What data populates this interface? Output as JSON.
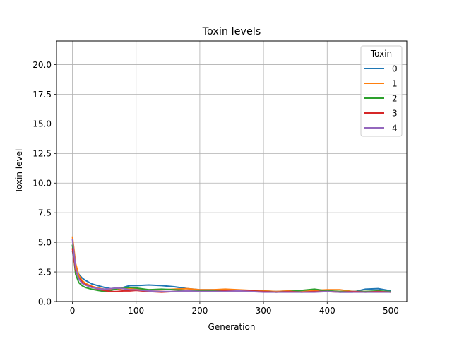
{
  "chart_data": {
    "type": "line",
    "title": "Toxin levels",
    "xlabel": "Generation",
    "ylabel": "Toxin level",
    "xlim": [
      -25,
      525
    ],
    "ylim": [
      0,
      22
    ],
    "xticks": [
      0,
      100,
      200,
      300,
      400,
      500
    ],
    "yticks": [
      0.0,
      2.5,
      5.0,
      7.5,
      10.0,
      12.5,
      15.0,
      17.5,
      20.0
    ],
    "ytick_labels": [
      "0.0",
      "2.5",
      "5.0",
      "7.5",
      "10.0",
      "12.5",
      "15.0",
      "17.5",
      "20.0"
    ],
    "grid": true,
    "legend": {
      "title": "Toxin",
      "placement": "top-right"
    },
    "x": [
      0,
      5,
      10,
      15,
      20,
      30,
      40,
      50,
      60,
      70,
      80,
      90,
      100,
      120,
      140,
      160,
      180,
      200,
      220,
      240,
      260,
      280,
      300,
      320,
      340,
      360,
      380,
      400,
      420,
      440,
      460,
      480,
      500
    ],
    "series": [
      {
        "name": "0",
        "color": "#1f77b4",
        "values": [
          4.3,
          2.9,
          2.3,
          2.0,
          1.8,
          1.5,
          1.35,
          1.2,
          1.1,
          1.15,
          1.2,
          1.35,
          1.35,
          1.4,
          1.35,
          1.25,
          1.1,
          1.0,
          1.0,
          0.95,
          0.95,
          0.9,
          0.9,
          0.85,
          0.9,
          0.9,
          0.95,
          0.95,
          0.8,
          0.8,
          1.05,
          1.1,
          0.9
        ]
      },
      {
        "name": "1",
        "color": "#ff7f0e",
        "values": [
          5.5,
          3.2,
          2.2,
          1.8,
          1.55,
          1.3,
          1.15,
          1.05,
          1.0,
          1.05,
          1.1,
          1.1,
          1.05,
          1.0,
          1.0,
          1.05,
          1.1,
          1.0,
          1.0,
          1.05,
          1.0,
          0.95,
          0.9,
          0.85,
          0.9,
          0.9,
          0.95,
          1.0,
          1.0,
          0.85,
          0.85,
          0.85,
          0.8
        ]
      },
      {
        "name": "2",
        "color": "#2ca02c",
        "values": [
          4.8,
          2.3,
          1.6,
          1.35,
          1.2,
          1.05,
          0.95,
          0.85,
          0.95,
          1.1,
          1.15,
          1.2,
          1.15,
          1.0,
          1.05,
          1.0,
          0.95,
          0.9,
          0.9,
          0.95,
          0.95,
          0.9,
          0.85,
          0.8,
          0.85,
          0.95,
          1.05,
          0.9,
          0.85,
          0.85,
          0.85,
          0.9,
          0.85
        ]
      },
      {
        "name": "3",
        "color": "#d62728",
        "values": [
          4.5,
          2.6,
          2.0,
          1.65,
          1.45,
          1.25,
          1.05,
          0.95,
          0.85,
          0.85,
          0.9,
          0.9,
          0.95,
          0.85,
          0.8,
          0.85,
          0.85,
          0.85,
          0.85,
          0.9,
          0.95,
          0.9,
          0.85,
          0.8,
          0.85,
          0.8,
          0.85,
          0.85,
          0.8,
          0.85,
          0.8,
          0.85,
          0.8
        ]
      },
      {
        "name": "4",
        "color": "#9467bd",
        "values": [
          5.3,
          2.8,
          1.9,
          1.55,
          1.4,
          1.2,
          1.1,
          1.05,
          1.1,
          1.15,
          1.1,
          1.0,
          1.0,
          0.9,
          0.85,
          0.85,
          0.9,
          0.85,
          0.85,
          0.85,
          0.9,
          0.85,
          0.8,
          0.8,
          0.8,
          0.8,
          0.8,
          0.85,
          0.8,
          0.8,
          0.8,
          0.8,
          0.8
        ]
      }
    ]
  }
}
